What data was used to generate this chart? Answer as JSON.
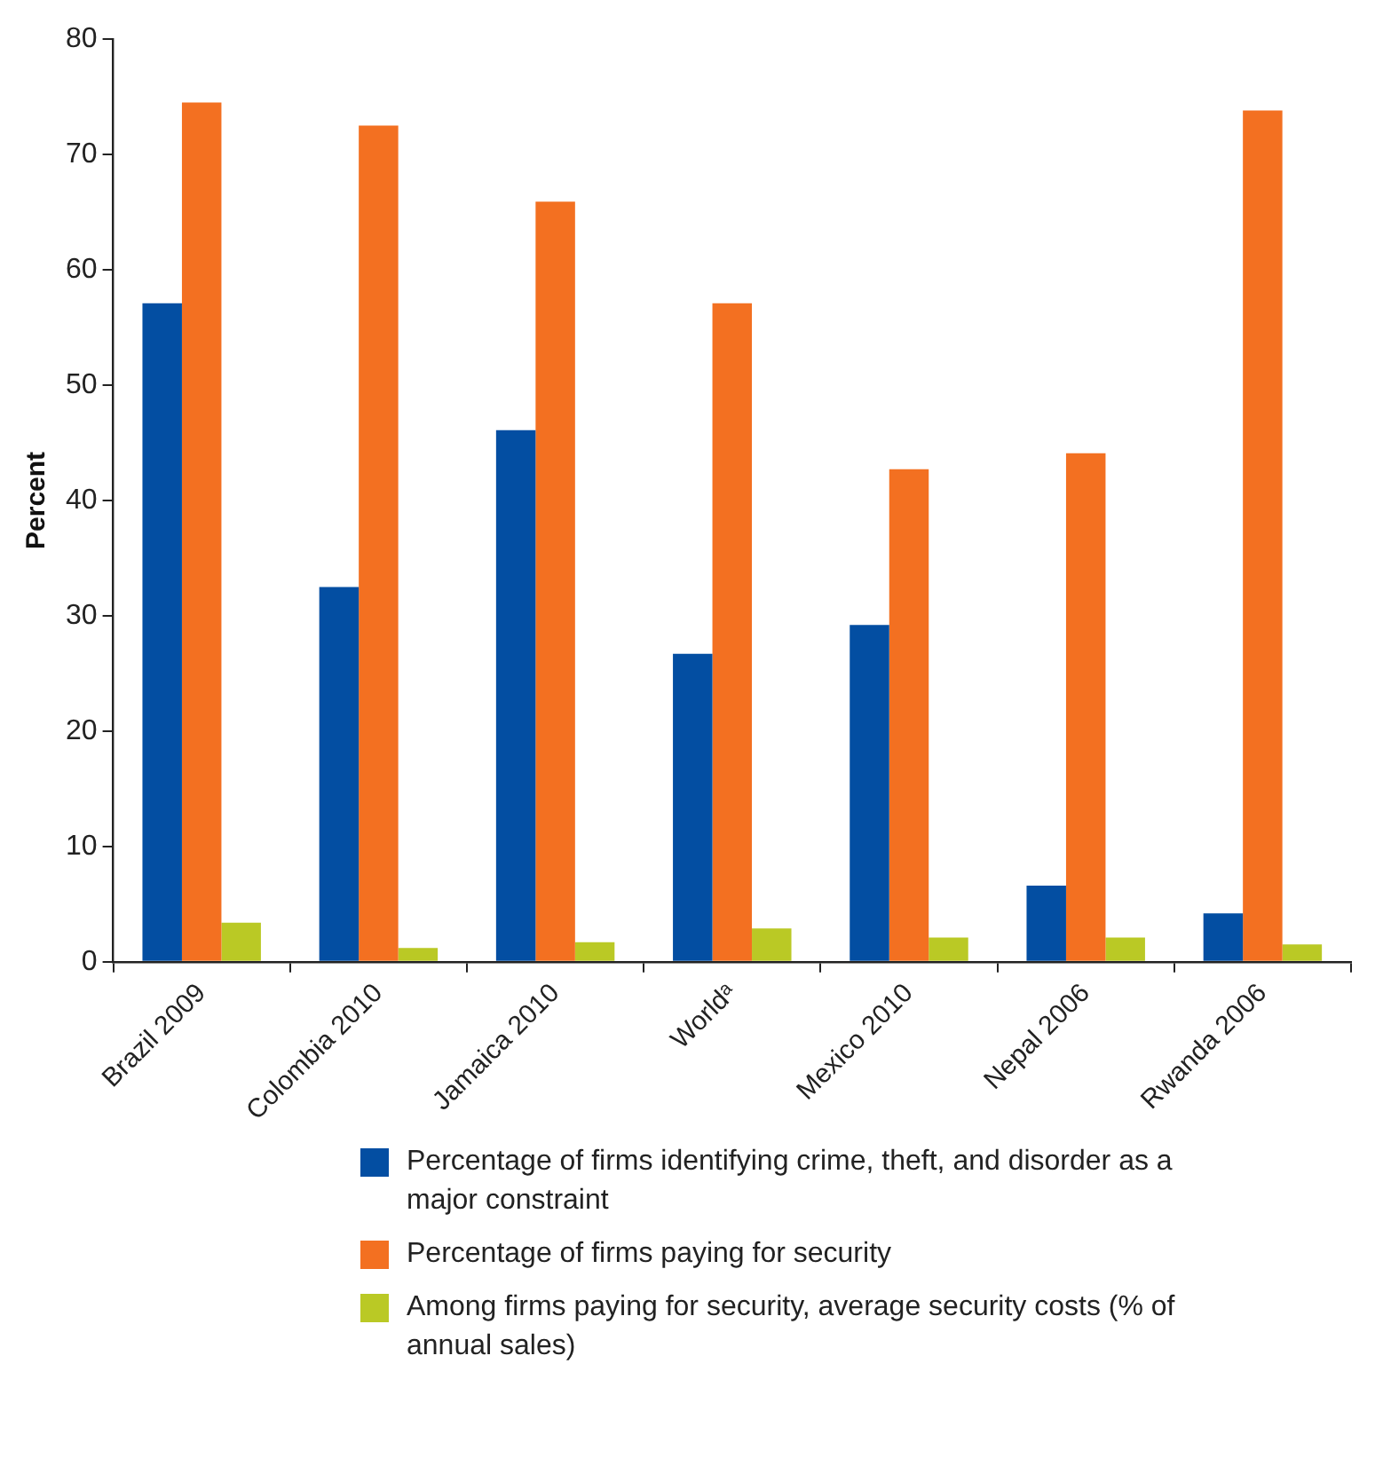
{
  "chart_data": {
    "type": "bar",
    "ylabel": "Percent",
    "categories": [
      "Brazil 2009",
      "Colombia 2010",
      "Jamaica 2010",
      "Worldᵃ",
      "Mexico 2010",
      "Nepal 2006",
      "Rwanda 2006"
    ],
    "series": [
      {
        "name": "Percentage of firms identifying crime, theft, and disorder as a major constraint",
        "color": "#034ea2",
        "values": [
          57.1,
          32.5,
          46.1,
          26.7,
          29.2,
          6.6,
          4.2
        ]
      },
      {
        "name": "Percentage of firms paying for security",
        "color": "#f37021",
        "values": [
          74.5,
          72.5,
          65.9,
          57.1,
          42.7,
          44.1,
          73.8
        ]
      },
      {
        "name": "Among firms paying for security, average security costs (% of annual sales)",
        "color": "#bac925",
        "values": [
          3.4,
          1.2,
          1.7,
          2.9,
          2.1,
          2.1,
          1.5
        ]
      }
    ],
    "ylim": [
      0,
      80
    ],
    "yticks": [
      0,
      10,
      20,
      30,
      40,
      50,
      60,
      70,
      80
    ],
    "grid": false,
    "legend": "bottom"
  }
}
